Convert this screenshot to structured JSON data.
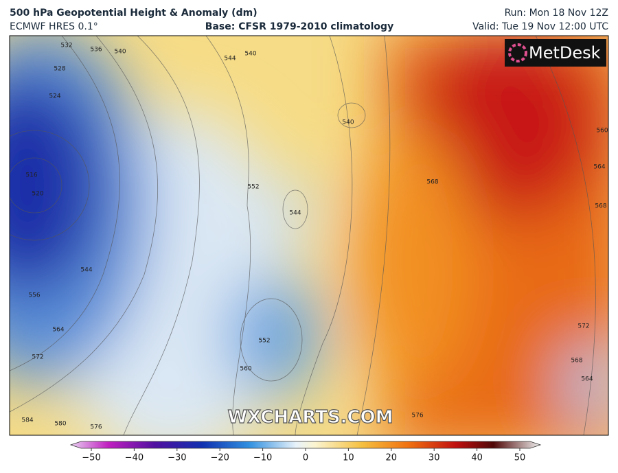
{
  "header": {
    "title": "500 hPa Geopotential Height & Anomaly (dm)",
    "model": "ECMWF HRES 0.1°",
    "base": "Base: CFSR 1979-2010 climatology",
    "run": "Run: Mon 18 Nov 12Z",
    "valid": "Valid: Tue 19 Nov 12:00 UTC"
  },
  "logo": "MetDesk",
  "watermark": "WXCHARTS.COM",
  "contour_labels": [
    "532",
    "536",
    "540",
    "540",
    "544",
    "528",
    "524",
    "540",
    "552",
    "544",
    "516",
    "520",
    "544",
    "556",
    "564",
    "572",
    "552",
    "560",
    "584",
    "580",
    "576",
    "568",
    "560",
    "564",
    "568",
    "572",
    "568",
    "564",
    "576"
  ],
  "colorbar": {
    "range": [
      -50,
      50
    ],
    "ticks": [
      {
        "value": -50,
        "label": "−50"
      },
      {
        "value": -40,
        "label": "−40"
      },
      {
        "value": -30,
        "label": "−30"
      },
      {
        "value": -20,
        "label": "−20"
      },
      {
        "value": -10,
        "label": "−10"
      },
      0,
      10,
      20,
      30,
      40,
      50
    ]
  }
}
